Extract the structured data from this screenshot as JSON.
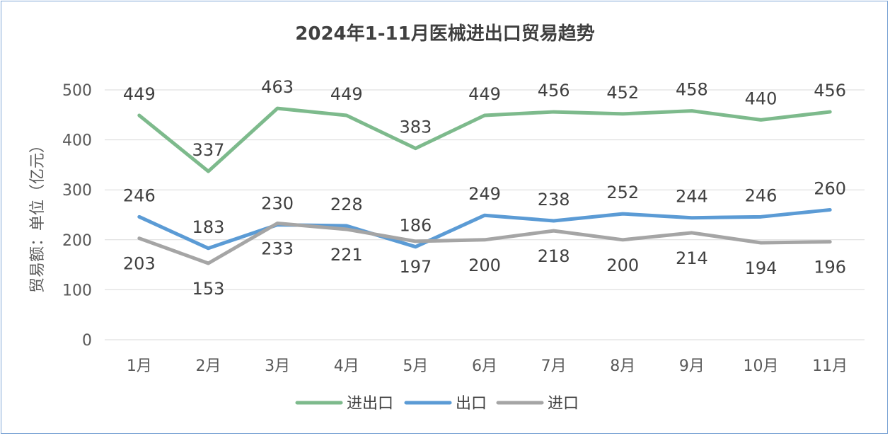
{
  "chart_data": {
    "type": "line",
    "title": "2024年1-11月医械进出口贸易趋势",
    "ylabel": "贸易额：单位（亿元）",
    "xlabel": "",
    "ylim": [
      0,
      500
    ],
    "yticks": [
      0,
      100,
      200,
      300,
      400,
      500
    ],
    "grid": true,
    "legend_position": "bottom",
    "categories": [
      "1月",
      "2月",
      "3月",
      "4月",
      "5月",
      "6月",
      "7月",
      "8月",
      "9月",
      "10月",
      "11月"
    ],
    "series": [
      {
        "name": "进出口",
        "color": "#7dba8c",
        "label_pos": "above",
        "values": [
          449,
          337,
          463,
          449,
          383,
          449,
          456,
          452,
          458,
          440,
          456
        ]
      },
      {
        "name": "出口",
        "color": "#5b9bd5",
        "label_pos": "above",
        "values": [
          246,
          183,
          230,
          228,
          186,
          249,
          238,
          252,
          244,
          246,
          260
        ]
      },
      {
        "name": "进口",
        "color": "#a5a5a5",
        "label_pos": "below",
        "values": [
          203,
          153,
          233,
          221,
          197,
          200,
          218,
          200,
          214,
          194,
          196
        ]
      }
    ]
  }
}
